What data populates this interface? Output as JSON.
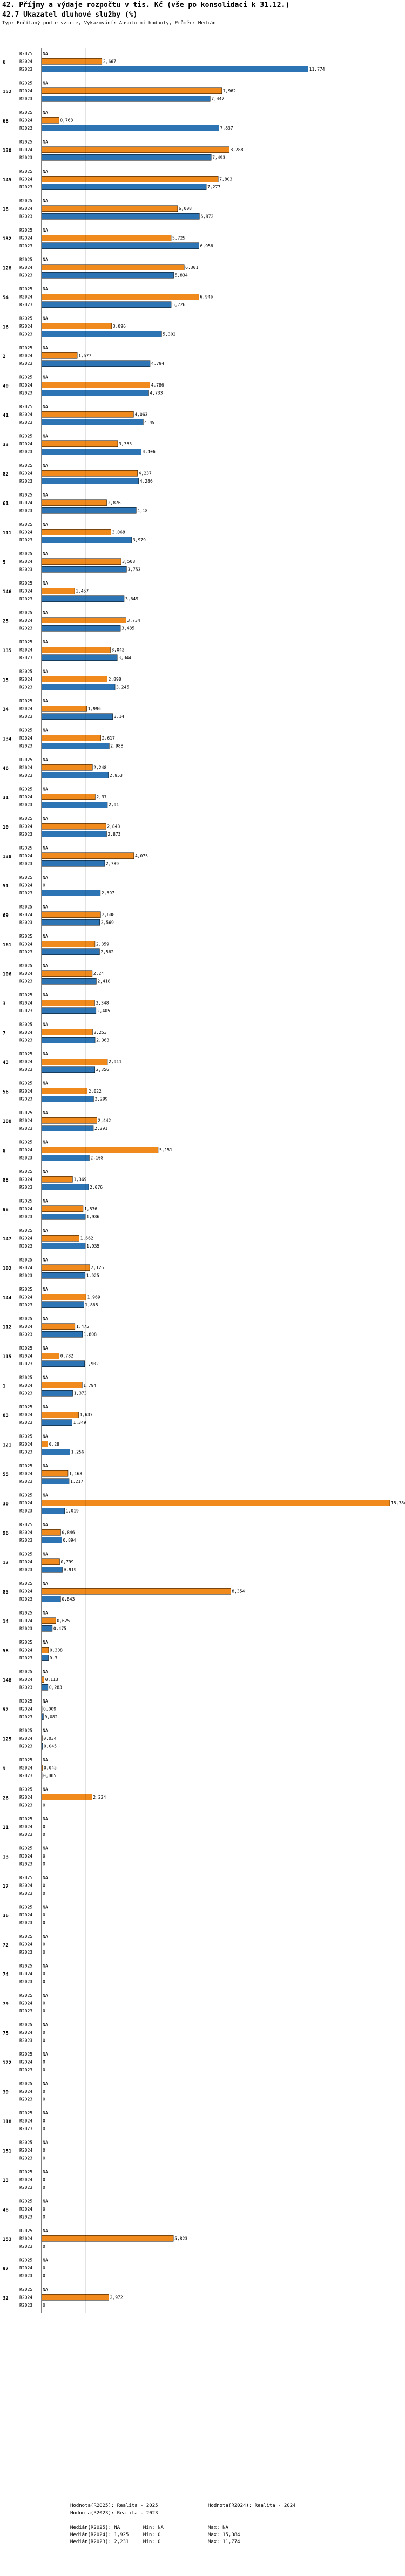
{
  "header": {
    "title": "42. Příjmy a výdaje rozpočtu v tis. Kč (vše po konsolidaci k 31.12.)",
    "subtitle": "42.7 Ukazatel dluhové služby (%)",
    "typ": "Typ: Počítaný podle vzorce, Vykazování: Absolutní hodnoty, Průměr: Medián"
  },
  "chart_data": {
    "type": "bar",
    "orientation": "horizontal",
    "series_labels": [
      "R2025",
      "R2024",
      "R2023"
    ],
    "series_colors": {
      "R2025": "#ffffff",
      "R2024": "#f08a1c",
      "R2023": "#2d74b4"
    },
    "nan_label": "NA",
    "xlim": [
      0,
      15.384
    ],
    "reference_lines": [
      1.925,
      2.231
    ],
    "groups": [
      {
        "id": "6",
        "values": [
          null,
          2.667,
          11.774
        ],
        "labels": [
          "NA",
          "2,667",
          "11,774"
        ]
      },
      {
        "id": "152",
        "values": [
          null,
          7.962,
          7.447
        ],
        "labels": [
          "NA",
          "7,962",
          "7,447"
        ]
      },
      {
        "id": "68",
        "values": [
          null,
          0.768,
          7.837
        ],
        "labels": [
          "NA",
          "0,768",
          "7,837"
        ]
      },
      {
        "id": "130",
        "values": [
          null,
          8.288,
          7.493
        ],
        "labels": [
          "NA",
          "8,288",
          "7,493"
        ]
      },
      {
        "id": "145",
        "values": [
          null,
          7.803,
          7.277
        ],
        "labels": [
          "NA",
          "7,803",
          "7,277"
        ]
      },
      {
        "id": "18",
        "values": [
          null,
          6.008,
          6.972
        ],
        "labels": [
          "NA",
          "6,008",
          "6,972"
        ]
      },
      {
        "id": "132",
        "values": [
          null,
          5.725,
          6.956
        ],
        "labels": [
          "NA",
          "5,725",
          "6,956"
        ]
      },
      {
        "id": "128",
        "values": [
          null,
          6.301,
          5.834
        ],
        "labels": [
          "NA",
          "6,301",
          "5,834"
        ]
      },
      {
        "id": "54",
        "values": [
          null,
          6.946,
          5.726
        ],
        "labels": [
          "NA",
          "6,946",
          "5,726"
        ]
      },
      {
        "id": "16",
        "values": [
          null,
          3.096,
          5.302
        ],
        "labels": [
          "NA",
          "3,096",
          "5,302"
        ]
      },
      {
        "id": "2",
        "values": [
          null,
          1.577,
          4.794
        ],
        "labels": [
          "NA",
          "1,577",
          "4,794"
        ]
      },
      {
        "id": "40",
        "values": [
          null,
          4.786,
          4.733
        ],
        "labels": [
          "NA",
          "4,786",
          "4,733"
        ]
      },
      {
        "id": "41",
        "values": [
          null,
          4.063,
          4.49
        ],
        "labels": [
          "NA",
          "4,063",
          "4,49"
        ]
      },
      {
        "id": "33",
        "values": [
          null,
          3.363,
          4.406
        ],
        "labels": [
          "NA",
          "3,363",
          "4,406"
        ]
      },
      {
        "id": "82",
        "values": [
          null,
          4.237,
          4.286
        ],
        "labels": [
          "NA",
          "4,237",
          "4,286"
        ]
      },
      {
        "id": "61",
        "values": [
          null,
          2.876,
          4.18
        ],
        "labels": [
          "NA",
          "2,876",
          "4,18"
        ]
      },
      {
        "id": "111",
        "values": [
          null,
          3.068,
          3.979
        ],
        "labels": [
          "NA",
          "3,068",
          "3,979"
        ]
      },
      {
        "id": "5",
        "values": [
          null,
          3.508,
          3.753
        ],
        "labels": [
          "NA",
          "3,508",
          "3,753"
        ]
      },
      {
        "id": "146",
        "values": [
          null,
          1.457,
          3.649
        ],
        "labels": [
          "NA",
          "1,457",
          "3,649"
        ]
      },
      {
        "id": "25",
        "values": [
          null,
          3.734,
          3.485
        ],
        "labels": [
          "NA",
          "3,734",
          "3,485"
        ]
      },
      {
        "id": "135",
        "values": [
          null,
          3.042,
          3.344
        ],
        "labels": [
          "NA",
          "3,042",
          "3,344"
        ]
      },
      {
        "id": "15",
        "values": [
          null,
          2.898,
          3.245
        ],
        "labels": [
          "NA",
          "2,898",
          "3,245"
        ]
      },
      {
        "id": "34",
        "values": [
          null,
          1.996,
          3.14
        ],
        "labels": [
          "NA",
          "1,996",
          "3,14"
        ]
      },
      {
        "id": "134",
        "values": [
          null,
          2.617,
          2.988
        ],
        "labels": [
          "NA",
          "2,617",
          "2,988"
        ]
      },
      {
        "id": "46",
        "values": [
          null,
          2.248,
          2.953
        ],
        "labels": [
          "NA",
          "2,248",
          "2,953"
        ]
      },
      {
        "id": "31",
        "values": [
          null,
          2.37,
          2.91
        ],
        "labels": [
          "NA",
          "2,37",
          "2,91"
        ]
      },
      {
        "id": "10",
        "values": [
          null,
          2.843,
          2.873
        ],
        "labels": [
          "NA",
          "2,843",
          "2,873"
        ]
      },
      {
        "id": "138",
        "values": [
          null,
          4.075,
          2.789
        ],
        "labels": [
          "NA",
          "4,075",
          "2,789"
        ]
      },
      {
        "id": "51",
        "values": [
          null,
          null,
          2.597
        ],
        "labels": [
          "NA",
          "0",
          "2,597"
        ]
      },
      {
        "id": "69",
        "values": [
          null,
          2.608,
          2.569
        ],
        "labels": [
          "NA",
          "2,608",
          "2,569"
        ]
      },
      {
        "id": "161",
        "values": [
          null,
          2.359,
          2.562
        ],
        "labels": [
          "NA",
          "2,359",
          "2,562"
        ]
      },
      {
        "id": "106",
        "values": [
          null,
          2.24,
          2.418
        ],
        "labels": [
          "NA",
          "2,24",
          "2,418"
        ]
      },
      {
        "id": "3",
        "values": [
          null,
          2.348,
          2.405
        ],
        "labels": [
          "NA",
          "2,348",
          "2,405"
        ]
      },
      {
        "id": "7",
        "values": [
          null,
          2.253,
          2.363
        ],
        "labels": [
          "NA",
          "2,253",
          "2,363"
        ]
      },
      {
        "id": "43",
        "values": [
          null,
          2.911,
          2.356
        ],
        "labels": [
          "NA",
          "2,911",
          "2,356"
        ]
      },
      {
        "id": "56",
        "values": [
          null,
          2.022,
          2.299
        ],
        "labels": [
          "NA",
          "2,022",
          "2,299"
        ]
      },
      {
        "id": "100",
        "values": [
          null,
          2.442,
          2.291
        ],
        "labels": [
          "NA",
          "2,442",
          "2,291"
        ]
      },
      {
        "id": "8",
        "values": [
          null,
          5.151,
          2.108
        ],
        "labels": [
          "NA",
          "5,151",
          "2,108"
        ]
      },
      {
        "id": "88",
        "values": [
          null,
          1.369,
          2.076
        ],
        "labels": [
          "NA",
          "1,369",
          "2,076"
        ]
      },
      {
        "id": "98",
        "values": [
          null,
          1.836,
          1.936
        ],
        "labels": [
          "NA",
          "1,836",
          "1,936"
        ]
      },
      {
        "id": "147",
        "values": [
          null,
          1.662,
          1.935
        ],
        "labels": [
          "NA",
          "1,662",
          "1,935"
        ]
      },
      {
        "id": "102",
        "values": [
          null,
          2.126,
          1.925
        ],
        "labels": [
          "NA",
          "2,126",
          "1,925"
        ]
      },
      {
        "id": "144",
        "values": [
          null,
          1.969,
          1.868
        ],
        "labels": [
          "NA",
          "1,969",
          "1,868"
        ]
      },
      {
        "id": "112",
        "values": [
          null,
          1.475,
          1.808
        ],
        "labels": [
          "NA",
          "1,475",
          "1,808"
        ]
      },
      {
        "id": "115",
        "values": [
          null,
          0.782,
          1.902
        ],
        "labels": [
          "NA",
          "0,782",
          "1,902"
        ]
      },
      {
        "id": "1",
        "values": [
          null,
          1.794,
          1.373
        ],
        "labels": [
          "NA",
          "1,794",
          "1,373"
        ]
      },
      {
        "id": "83",
        "values": [
          null,
          1.637,
          1.349
        ],
        "labels": [
          "NA",
          "1,637",
          "1,349"
        ]
      },
      {
        "id": "121",
        "values": [
          null,
          0.28,
          1.256
        ],
        "labels": [
          "NA",
          "0,28",
          "1,256"
        ]
      },
      {
        "id": "55",
        "values": [
          null,
          1.168,
          1.217
        ],
        "labels": [
          "NA",
          "1,168",
          "1,217"
        ]
      },
      {
        "id": "30",
        "values": [
          null,
          15.384,
          1.019
        ],
        "labels": [
          "NA",
          "15,384",
          "1,019"
        ]
      },
      {
        "id": "96",
        "values": [
          null,
          0.846,
          0.894
        ],
        "labels": [
          "NA",
          "0,846",
          "0,894"
        ]
      },
      {
        "id": "12",
        "values": [
          null,
          0.799,
          0.919
        ],
        "labels": [
          "NA",
          "0,799",
          "0,919"
        ]
      },
      {
        "id": "85",
        "values": [
          null,
          8.354,
          0.843
        ],
        "labels": [
          "NA",
          "8,354",
          "0,843"
        ]
      },
      {
        "id": "14",
        "values": [
          null,
          0.625,
          0.475
        ],
        "labels": [
          "NA",
          "0,625",
          "0,475"
        ]
      },
      {
        "id": "58",
        "values": [
          null,
          0.308,
          0.3
        ],
        "labels": [
          "NA",
          "0,308",
          "0,3"
        ]
      },
      {
        "id": "148",
        "values": [
          null,
          0.113,
          0.283
        ],
        "labels": [
          "NA",
          "0,113",
          "0,283"
        ]
      },
      {
        "id": "52",
        "values": [
          null,
          0.009,
          0.082
        ],
        "labels": [
          "NA",
          "0,009",
          "0,082"
        ]
      },
      {
        "id": "125",
        "values": [
          null,
          0.034,
          0.045
        ],
        "labels": [
          "NA",
          "0,034",
          "0,045"
        ]
      },
      {
        "id": "9",
        "values": [
          null,
          0.045,
          0.005
        ],
        "labels": [
          "NA",
          "0,045",
          "0,005"
        ]
      },
      {
        "id": "26",
        "values": [
          null,
          2.224,
          null
        ],
        "labels": [
          "NA",
          "2,224",
          "0"
        ]
      },
      {
        "id": "11",
        "values": [
          null,
          null,
          null
        ],
        "labels": [
          "NA",
          "0",
          "0"
        ]
      },
      {
        "id": "13",
        "values": [
          null,
          null,
          null
        ],
        "labels": [
          "NA",
          "0",
          "0"
        ]
      },
      {
        "id": "17",
        "values": [
          null,
          null,
          null
        ],
        "labels": [
          "NA",
          "0",
          "0"
        ]
      },
      {
        "id": "36",
        "values": [
          null,
          null,
          null
        ],
        "labels": [
          "NA",
          "0",
          "0"
        ]
      },
      {
        "id": "72",
        "values": [
          null,
          null,
          null
        ],
        "labels": [
          "NA",
          "0",
          "0"
        ]
      },
      {
        "id": "74",
        "values": [
          null,
          null,
          null
        ],
        "labels": [
          "NA",
          "0",
          "0"
        ]
      },
      {
        "id": "79",
        "values": [
          null,
          null,
          null
        ],
        "labels": [
          "NA",
          "0",
          "0"
        ]
      },
      {
        "id": "75",
        "values": [
          null,
          null,
          null
        ],
        "labels": [
          "NA",
          "0",
          "0"
        ]
      },
      {
        "id": "122",
        "values": [
          null,
          null,
          null
        ],
        "labels": [
          "NA",
          "0",
          "0"
        ]
      },
      {
        "id": "39",
        "values": [
          null,
          null,
          null
        ],
        "labels": [
          "NA",
          "0",
          "0"
        ]
      },
      {
        "id": "118",
        "values": [
          null,
          null,
          null
        ],
        "labels": [
          "NA",
          "0",
          "0"
        ]
      },
      {
        "id": "151",
        "values": [
          null,
          null,
          null
        ],
        "labels": [
          "NA",
          "0",
          "0"
        ]
      },
      {
        "id": "13",
        "values": [
          null,
          null,
          null
        ],
        "labels": [
          "NA",
          "0",
          "0"
        ]
      },
      {
        "id": "48",
        "values": [
          null,
          null,
          null
        ],
        "labels": [
          "NA",
          "0",
          "0"
        ]
      },
      {
        "id": "153",
        "values": [
          null,
          5.823,
          null
        ],
        "labels": [
          "NA",
          "5,823",
          "0"
        ]
      },
      {
        "id": "97",
        "values": [
          null,
          null,
          null
        ],
        "labels": [
          "NA",
          "0",
          "0"
        ]
      },
      {
        "id": "32",
        "values": [
          null,
          2.972,
          null
        ],
        "labels": [
          "NA",
          "2,972",
          "0"
        ]
      }
    ]
  },
  "footer": {
    "legend": {
      "r2025": "Hodnota(R2025): Realita - 2025",
      "r2024": "Hodnota(R2024): Realita - 2024",
      "r2023": "Hodnota(R2023): Realita - 2023"
    },
    "stats": [
      [
        "Medián(R2025): NA",
        "Min: NA",
        "Max: NA"
      ],
      [
        "Medián(R2024): 1,925",
        "Min: 0",
        "Max: 15,384"
      ],
      [
        "Medián(R2023): 2,231",
        "Min: 0",
        "Max: 11,774"
      ]
    ]
  }
}
